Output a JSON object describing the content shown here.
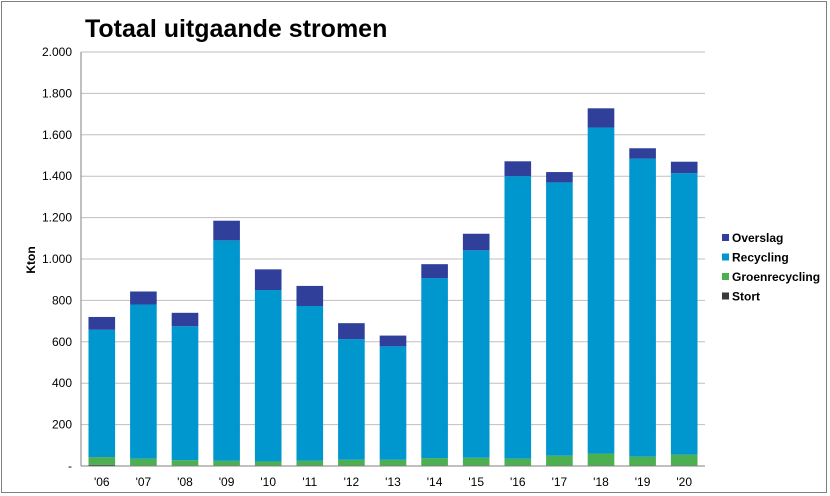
{
  "chart_data": {
    "type": "bar",
    "stacked": true,
    "title": "Totaal uitgaande stromen",
    "xlabel": "",
    "ylabel": "Kton",
    "ylim": [
      0,
      2000
    ],
    "yticks": [
      0,
      200,
      400,
      600,
      800,
      1000,
      1200,
      1400,
      1600,
      1800,
      2000
    ],
    "ytick_labels": [
      "-",
      "200",
      "400",
      "600",
      "800",
      "1.000",
      "1.200",
      "1.400",
      "1.600",
      "1.800",
      "2.000"
    ],
    "grid": true,
    "legend_position": "right",
    "categories": [
      "'06",
      "'07",
      "'08",
      "'09",
      "'10",
      "'11",
      "'12",
      "'13",
      "'14",
      "'15",
      "'16",
      "'17",
      "'18",
      "'19",
      "'20"
    ],
    "series": [
      {
        "name": "Stort",
        "color": "#3a3a3a",
        "values": [
          5,
          0,
          0,
          0,
          0,
          0,
          0,
          0,
          0,
          0,
          0,
          0,
          0,
          0,
          0
        ]
      },
      {
        "name": "Groenrecycling",
        "color": "#4caf50",
        "values": [
          38,
          35,
          28,
          25,
          22,
          25,
          30,
          30,
          38,
          40,
          35,
          50,
          60,
          45,
          55
        ]
      },
      {
        "name": "Recycling",
        "color": "#0097cf",
        "values": [
          615,
          745,
          647,
          1065,
          828,
          748,
          583,
          548,
          870,
          1002,
          1365,
          1320,
          1575,
          1440,
          1360
        ]
      },
      {
        "name": "Overslag",
        "color": "#2f3f9a",
        "values": [
          62,
          63,
          65,
          95,
          100,
          97,
          77,
          52,
          67,
          80,
          72,
          50,
          93,
          50,
          55
        ]
      }
    ]
  }
}
